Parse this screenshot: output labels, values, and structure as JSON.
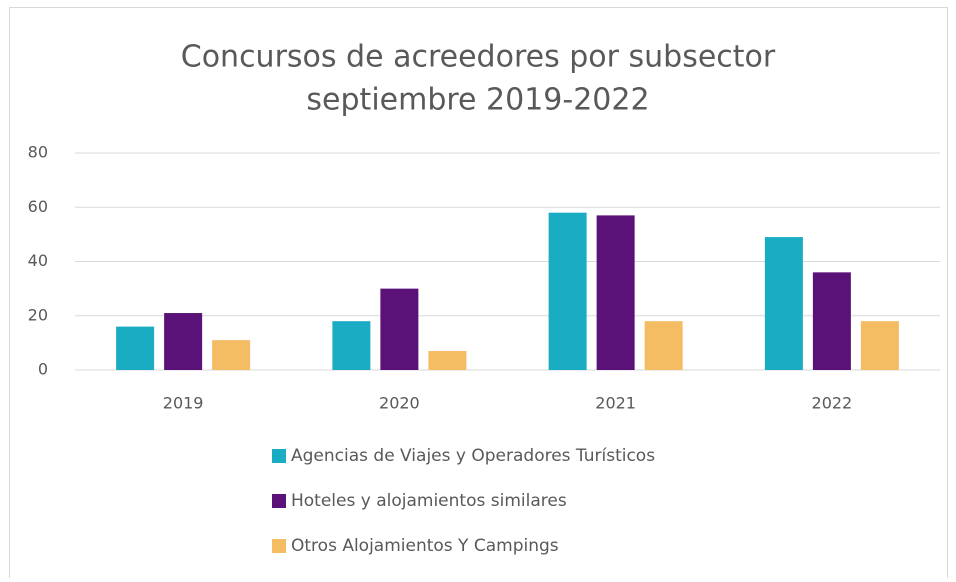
{
  "chart_data": {
    "type": "bar",
    "title": "Concursos de acreedores por subsector",
    "subtitle": "septiembre 2019-2022",
    "categories": [
      "2019",
      "2020",
      "2021",
      "2022"
    ],
    "series": [
      {
        "name": "Agencias de Viajes y Operadores Turísticos",
        "color": "#1aacc3",
        "values": [
          16,
          18,
          58,
          49
        ]
      },
      {
        "name": "Hoteles y alojamientos similares",
        "color": "#5b1278",
        "values": [
          21,
          30,
          57,
          36
        ]
      },
      {
        "name": "Otros Alojamientos Y Campings",
        "color": "#f4bc63",
        "values": [
          11,
          7,
          18,
          18
        ]
      }
    ],
    "ylim": [
      0,
      80
    ],
    "yticks": [
      0,
      20,
      40,
      60,
      80
    ],
    "grid": true,
    "legend": "bottom"
  }
}
